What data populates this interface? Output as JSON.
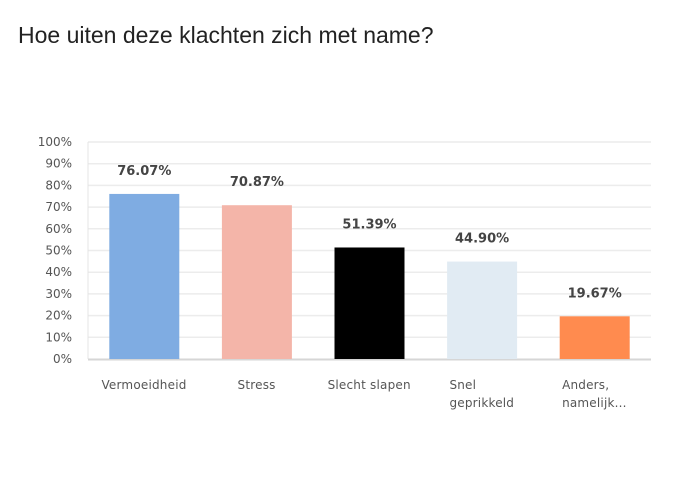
{
  "title": "Hoe uiten deze klachten zich met name?",
  "chart_data": {
    "type": "bar",
    "title": "Hoe uiten deze klachten zich met name?",
    "categories": [
      "Vermoeidheid",
      "Stress",
      "Slecht slapen",
      "Snel geprikkeld",
      "Anders, namelijk..."
    ],
    "category_lines": [
      [
        "Vermoeidheid"
      ],
      [
        "Stress"
      ],
      [
        "Slecht slapen"
      ],
      [
        "Snel",
        "geprikkeld"
      ],
      [
        "Anders,",
        "namelijk..."
      ]
    ],
    "values": [
      76.07,
      70.87,
      51.39,
      44.9,
      19.67
    ],
    "data_labels": [
      "76.07%",
      "70.87%",
      "51.39%",
      "44.90%",
      "19.67%"
    ],
    "colors": [
      "#7facE2",
      "#f4b5a9",
      "#000000",
      "#e1ebf3",
      "#ff8b4f"
    ],
    "yticks": [
      "0%",
      "10%",
      "20%",
      "30%",
      "40%",
      "50%",
      "60%",
      "70%",
      "80%",
      "90%",
      "100%"
    ],
    "ylim": [
      0,
      100
    ],
    "xlabel": "",
    "ylabel": "",
    "grid": true,
    "legend": "none"
  }
}
